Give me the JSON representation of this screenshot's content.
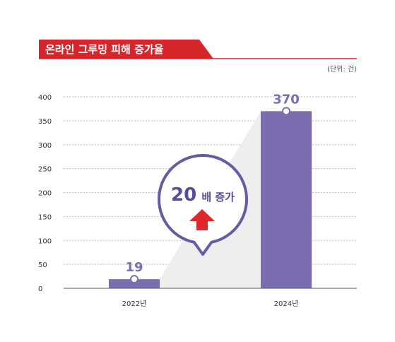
{
  "chart_data": {
    "type": "bar",
    "title": "온라인 그루밍 피해 증가율",
    "unit": "(단위: 건)",
    "categories": [
      "2022년",
      "2024년"
    ],
    "values": [
      19,
      370
    ],
    "value_labels": [
      "19",
      "370"
    ],
    "ylim": [
      0,
      400
    ],
    "yticks": [
      0,
      50,
      100,
      150,
      200,
      250,
      300,
      350,
      400
    ],
    "grid": true,
    "callout": {
      "number": "20",
      "text": "배 증가"
    }
  },
  "colors": {
    "title_bg": "#d7262b",
    "bar": "#7b6db0",
    "value_text": "#7b6db0",
    "callout_border": "#6a5aa6",
    "arrow": "#e0282b",
    "grid": "#bcbcbc"
  }
}
